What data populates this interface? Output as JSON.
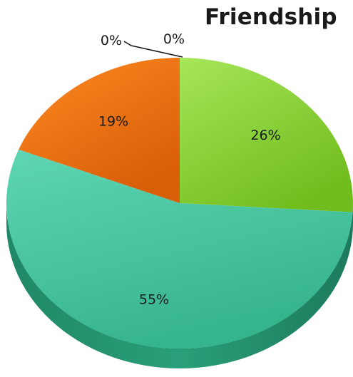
{
  "chart_data": {
    "type": "pie",
    "title": "Friendship",
    "slices": [
      {
        "label": "26%",
        "value": 26,
        "color": "#8ed43a"
      },
      {
        "label": "55%",
        "value": 55,
        "color": "#4ec9a6"
      },
      {
        "label": "19%",
        "value": 19,
        "color": "#f07a1c"
      },
      {
        "label": "0%",
        "value": 0,
        "color": "#999999"
      },
      {
        "label": "0%",
        "value": 0,
        "color": "#999999"
      }
    ],
    "legend": "none",
    "style": "3d"
  }
}
